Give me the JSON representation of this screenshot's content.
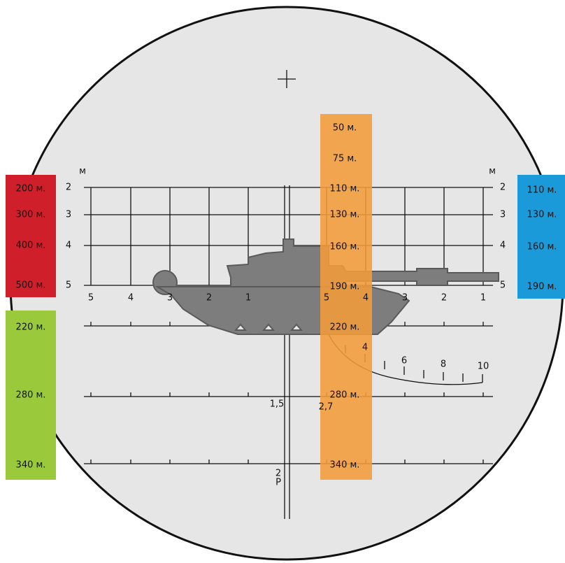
{
  "panels": {
    "red": [
      "200 м.",
      "300 м.",
      "400 м.",
      "500 м."
    ],
    "green": [
      "220 м.",
      "280 м.",
      "340 м."
    ],
    "orange": [
      "50 м.",
      "75 м.",
      "110 м.",
      "130 м.",
      "160 м.",
      "190 м.",
      "220 м.",
      "280 м.",
      "340 м."
    ],
    "blue": [
      "110 м.",
      "130 м.",
      "160 м.",
      "190 м."
    ]
  },
  "reticle": {
    "unit_left": "м",
    "unit_right": "м",
    "rows_left": [
      "2",
      "3",
      "4",
      "5"
    ],
    "rows_right": [
      "2",
      "3",
      "4",
      "5"
    ],
    "scale_left": [
      "5",
      "4",
      "3",
      "2",
      "1"
    ],
    "scale_right": [
      "5",
      "4",
      "3",
      "2",
      "1"
    ],
    "curve": [
      "4",
      "6",
      "8",
      "10"
    ],
    "mark_a": "1,5",
    "mark_b": "2,7",
    "mark_c": "2",
    "mark_d": "Р"
  }
}
